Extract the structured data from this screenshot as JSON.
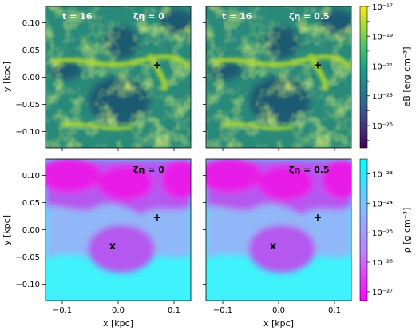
{
  "colors": {
    "cbar_top": [
      "#440154",
      "#46327e",
      "#365c8d",
      "#277f8e",
      "#1fa187",
      "#4ac16d",
      "#a0da39",
      "#fde725"
    ],
    "cbar_bottom": [
      "#ff00ff",
      "#c080ff",
      "#80c0ff",
      "#00ffff"
    ],
    "field_dark": "#1f5a72",
    "field_mid": "#2a8a7a",
    "field_bright": "#b5dc2a",
    "rho_magenta": "#e81be8",
    "rho_violet": "#b458f0",
    "rho_blue": "#90b8f8",
    "rho_cyan": "#40f2fb"
  },
  "chart_data": [
    {
      "type": "heatmap",
      "panel": "top-left",
      "quantity": "e_B",
      "annotation_time": "t = 16",
      "annotation_param": "ζη = 0",
      "markers": [
        {
          "symbol": "+",
          "x": 0.07,
          "y": 0.022
        }
      ],
      "xlim": [
        -0.13,
        0.13
      ],
      "ylim": [
        -0.13,
        0.13
      ]
    },
    {
      "type": "heatmap",
      "panel": "top-right",
      "quantity": "e_B",
      "annotation_time": "t = 16",
      "annotation_param": "ζη = 0.5",
      "markers": [
        {
          "symbol": "+",
          "x": 0.07,
          "y": 0.022
        }
      ],
      "xlim": [
        -0.13,
        0.13
      ],
      "ylim": [
        -0.13,
        0.13
      ]
    },
    {
      "type": "heatmap",
      "panel": "bottom-left",
      "quantity": "rho",
      "annotation_param": "ζη = 0",
      "markers": [
        {
          "symbol": "+",
          "x": 0.07,
          "y": 0.022
        },
        {
          "symbol": "x",
          "x": -0.01,
          "y": -0.03
        }
      ],
      "xlim": [
        -0.13,
        0.13
      ],
      "ylim": [
        -0.13,
        0.13
      ]
    },
    {
      "type": "heatmap",
      "panel": "bottom-right",
      "quantity": "rho",
      "annotation_param": "ζη = 0.5",
      "markers": [
        {
          "symbol": "+",
          "x": 0.07,
          "y": 0.022
        },
        {
          "symbol": "x",
          "x": -0.01,
          "y": -0.03
        }
      ],
      "xlim": [
        -0.13,
        0.13
      ],
      "ylim": [
        -0.13,
        0.13
      ]
    }
  ],
  "axes": {
    "x_ticks": [
      "−0.1",
      "0.0",
      "0.1"
    ],
    "x_tick_values": [
      -0.1,
      0.0,
      0.1
    ],
    "y_ticks": [
      "0.10",
      "0.05",
      "0.00",
      "−0.05",
      "−0.10"
    ],
    "y_tick_values": [
      0.1,
      0.05,
      0.0,
      -0.05,
      -0.1
    ],
    "xlabel": "x [kpc]",
    "ylabel": "y [kpc]"
  },
  "colorbars": {
    "top": {
      "label": "e_B [erg cm^-3]",
      "label_display": "eB [erg cm⁻³]",
      "scale": "log",
      "range_log10": [
        -26.5,
        -17
      ],
      "ticks": [
        "10⁻¹⁷",
        "10⁻¹⁹",
        "10⁻²¹",
        "10⁻²³",
        "10⁻²⁵"
      ],
      "tick_values_log10": [
        -17,
        -19,
        -21,
        -23,
        -25
      ]
    },
    "bottom": {
      "label": "rho [g cm^-3]",
      "label_display": "ρ [g cm⁻³]",
      "scale": "log",
      "range_log10": [
        -27.3,
        -22.5
      ],
      "ticks": [
        "10⁻²³",
        "10⁻²⁴",
        "10⁻²⁵",
        "10⁻²⁶",
        "10⁻²⁷"
      ],
      "tick_values_log10": [
        -23,
        -24,
        -25,
        -26,
        -27
      ]
    }
  }
}
